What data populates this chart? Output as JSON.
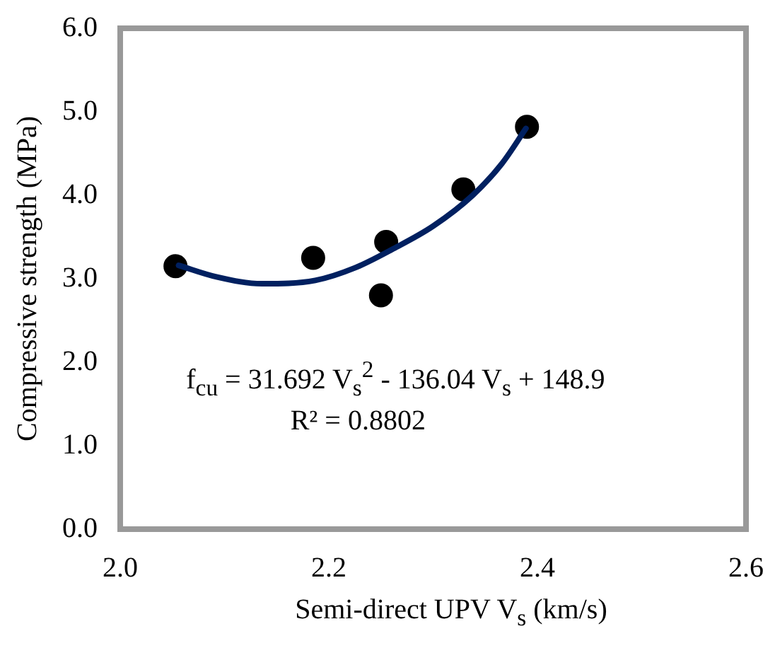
{
  "chart_data": {
    "type": "scatter",
    "xlabel": "Semi-direct UPV V$_{s}$ (km/s)",
    "ylabel": "Compressive strength (MPa)",
    "x": [
      2.053,
      2.185,
      2.25,
      2.255,
      2.329,
      2.39
    ],
    "xlim": [
      2.0,
      2.6
    ],
    "xticks": [
      {
        "value": 2.0,
        "label": "2.0"
      },
      {
        "value": 2.2,
        "label": "2.2"
      },
      {
        "value": 2.4,
        "label": "2.4"
      },
      {
        "value": 2.6,
        "label": "2.6"
      }
    ],
    "ylim": [
      0,
      6
    ],
    "yticks": [
      {
        "value": 0,
        "label": "0.0"
      },
      {
        "value": 1,
        "label": "1.0"
      },
      {
        "value": 2,
        "label": "2.0"
      },
      {
        "value": 3,
        "label": "3.0"
      },
      {
        "value": 4,
        "label": "4.0"
      },
      {
        "value": 5,
        "label": "5.0"
      },
      {
        "value": 6,
        "label": "6.0"
      }
    ],
    "marker": "circle",
    "series": [
      {
        "color": "#000000",
        "values": [
          3.15,
          3.25,
          2.8,
          3.44,
          4.07,
          4.82
        ]
      },
      {
        "type": "line",
        "marker": "none",
        "color": "#002060",
        "x": [
          2.056,
          2.093,
          2.136,
          2.187,
          2.225,
          2.262,
          2.3,
          2.338,
          2.366,
          2.389
        ],
        "values": [
          3.16,
          3.02,
          2.94,
          2.98,
          3.13,
          3.36,
          3.63,
          4.0,
          4.38,
          4.8
        ]
      }
    ],
    "annotations": [
      "f$_{cu}$ = 31.692 V$_{s}$$^{2}$ - 136.04 V$_{s}$ + 148.9",
      "R² = 0.8802"
    ]
  }
}
